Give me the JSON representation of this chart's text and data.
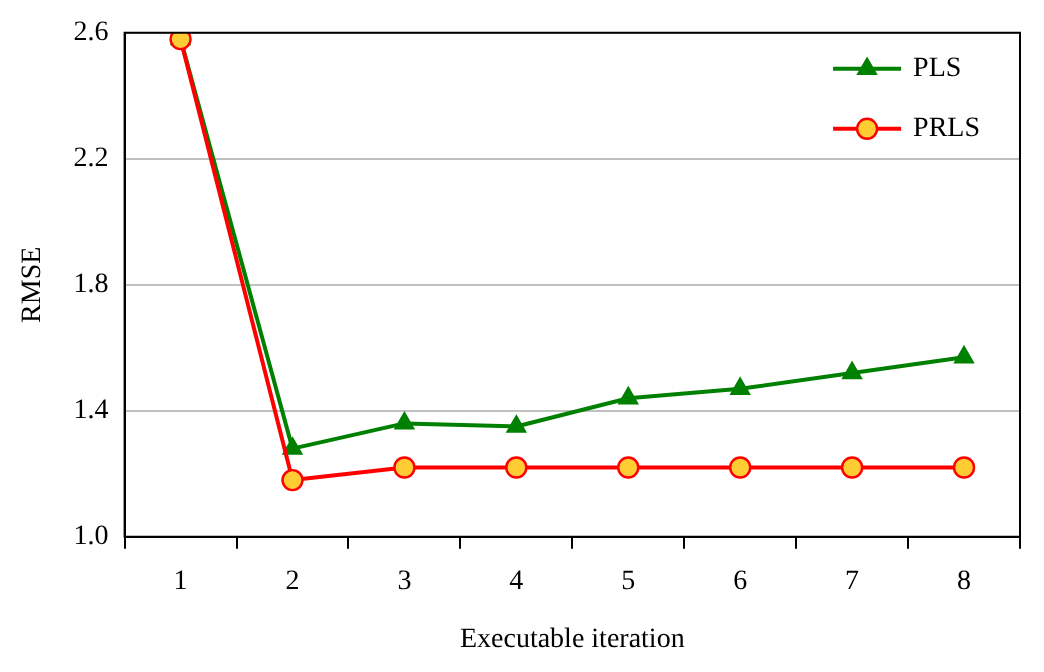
{
  "chart_data": {
    "type": "line",
    "xlabel": "Executable iteration",
    "ylabel": "RMSE",
    "categories": [
      "1",
      "2",
      "3",
      "4",
      "5",
      "6",
      "7",
      "8"
    ],
    "series": [
      {
        "name": "PLS",
        "color": "#008000",
        "marker": "triangle",
        "values": [
          2.58,
          1.28,
          1.36,
          1.35,
          1.44,
          1.47,
          1.52,
          1.57
        ]
      },
      {
        "name": "PRLS",
        "color": "#ff0000",
        "marker": "circle",
        "values": [
          2.58,
          1.18,
          1.22,
          1.22,
          1.22,
          1.22,
          1.22,
          1.22
        ]
      }
    ],
    "ylim": [
      1.0,
      2.6
    ],
    "yticks": [
      {
        "value": 1.0,
        "label": "1.0"
      },
      {
        "value": 1.4,
        "label": "1.4"
      },
      {
        "value": 1.8,
        "label": "1.8"
      },
      {
        "value": 2.2,
        "label": "2.2"
      },
      {
        "value": 2.6,
        "label": "2.6"
      }
    ],
    "grid": "y",
    "legend": "top right",
    "line_style": "solid"
  }
}
